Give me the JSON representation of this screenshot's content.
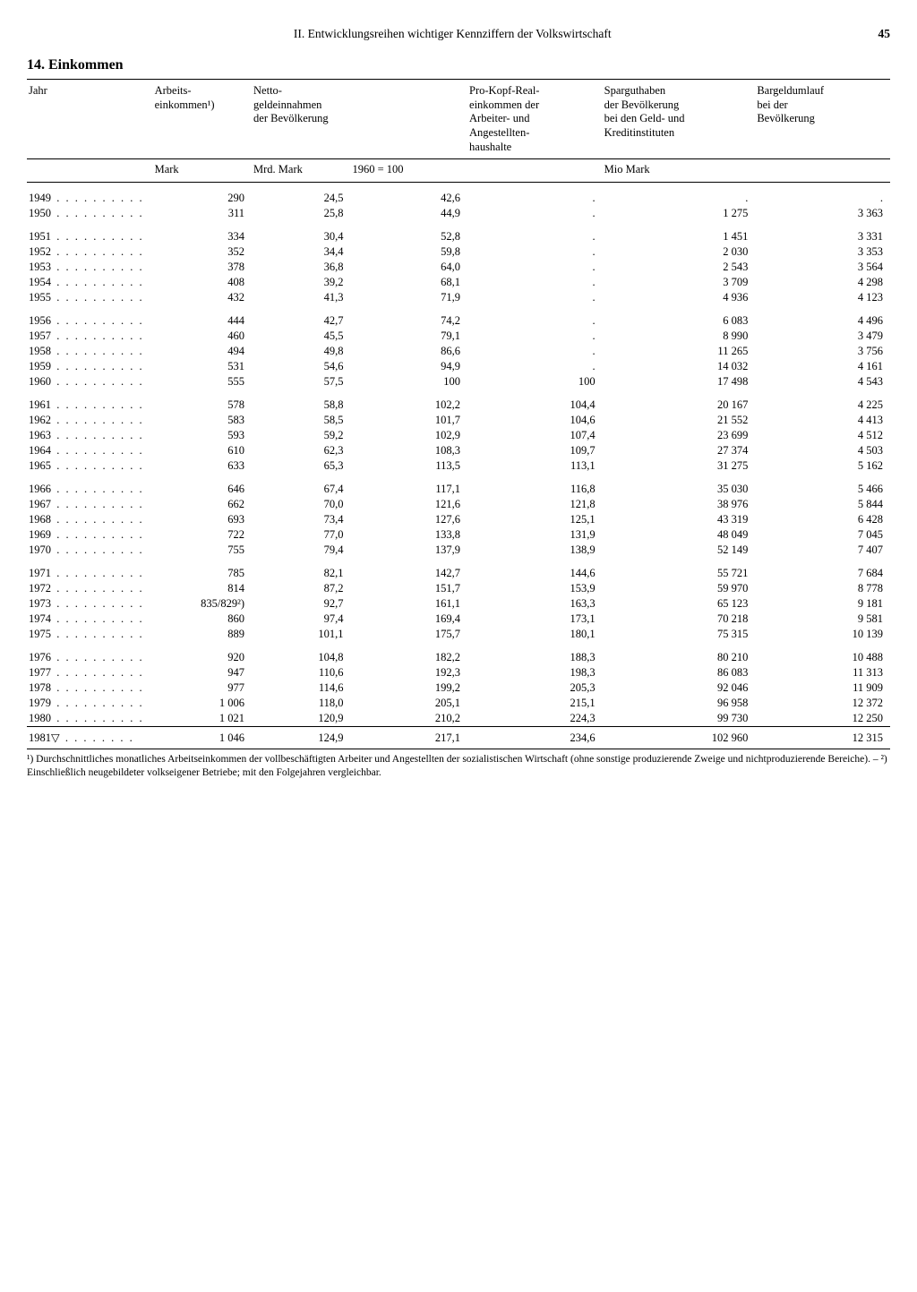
{
  "page": {
    "running_head": "II. Entwicklungsreihen wichtiger Kennziffern der Volkswirtschaft",
    "page_number": "45",
    "section_title": "14. Einkommen"
  },
  "table": {
    "col_widths": [
      "130px",
      "110px",
      "110px",
      "130px",
      "150px",
      "170px",
      "150px"
    ],
    "head": {
      "c1": "Jahr",
      "c2": "Arbeits-\neinkommen¹)",
      "c3": "Netto-\ngeldeinnahmen\nder Bevölkerung",
      "c5": "Pro-Kopf-Real-\neinkommen der\nArbeiter- und\nAngestellten-\nhaushalte",
      "c6": "Sparguthaben\nder Bevölkerung\nbei den Geld- und\nKreditinstituten",
      "c7": "Bargeldumlauf\nbei der\nBevölkerung"
    },
    "sub": {
      "c2": "Mark",
      "c3": "Mrd. Mark",
      "c4": "1960 = 100",
      "c6": "Mio Mark"
    },
    "groups": [
      [
        {
          "year": "1949",
          "c2": "290",
          "c3": "24,5",
          "c4": "42,6",
          "c5": ".",
          "c6": ".",
          "c7": "."
        },
        {
          "year": "1950",
          "c2": "311",
          "c3": "25,8",
          "c4": "44,9",
          "c5": ".",
          "c6": "1 275",
          "c7": "3 363"
        }
      ],
      [
        {
          "year": "1951",
          "c2": "334",
          "c3": "30,4",
          "c4": "52,8",
          "c5": ".",
          "c6": "1 451",
          "c7": "3 331"
        },
        {
          "year": "1952",
          "c2": "352",
          "c3": "34,4",
          "c4": "59,8",
          "c5": ".",
          "c6": "2 030",
          "c7": "3 353"
        },
        {
          "year": "1953",
          "c2": "378",
          "c3": "36,8",
          "c4": "64,0",
          "c5": ".",
          "c6": "2 543",
          "c7": "3 564"
        },
        {
          "year": "1954",
          "c2": "408",
          "c3": "39,2",
          "c4": "68,1",
          "c5": ".",
          "c6": "3 709",
          "c7": "4 298"
        },
        {
          "year": "1955",
          "c2": "432",
          "c3": "41,3",
          "c4": "71,9",
          "c5": ".",
          "c6": "4 936",
          "c7": "4 123"
        }
      ],
      [
        {
          "year": "1956",
          "c2": "444",
          "c3": "42,7",
          "c4": "74,2",
          "c5": ".",
          "c6": "6 083",
          "c7": "4 496"
        },
        {
          "year": "1957",
          "c2": "460",
          "c3": "45,5",
          "c4": "79,1",
          "c5": ".",
          "c6": "8 990",
          "c7": "3 479"
        },
        {
          "year": "1958",
          "c2": "494",
          "c3": "49,8",
          "c4": "86,6",
          "c5": ".",
          "c6": "11 265",
          "c7": "3 756"
        },
        {
          "year": "1959",
          "c2": "531",
          "c3": "54,6",
          "c4": "94,9",
          "c5": ".",
          "c6": "14 032",
          "c7": "4 161"
        },
        {
          "year": "1960",
          "c2": "555",
          "c3": "57,5",
          "c4": "100",
          "c5": "100",
          "c6": "17 498",
          "c7": "4 543"
        }
      ],
      [
        {
          "year": "1961",
          "c2": "578",
          "c3": "58,8",
          "c4": "102,2",
          "c5": "104,4",
          "c6": "20 167",
          "c7": "4 225"
        },
        {
          "year": "1962",
          "c2": "583",
          "c3": "58,5",
          "c4": "101,7",
          "c5": "104,6",
          "c6": "21 552",
          "c7": "4 413"
        },
        {
          "year": "1963",
          "c2": "593",
          "c3": "59,2",
          "c4": "102,9",
          "c5": "107,4",
          "c6": "23 699",
          "c7": "4 512"
        },
        {
          "year": "1964",
          "c2": "610",
          "c3": "62,3",
          "c4": "108,3",
          "c5": "109,7",
          "c6": "27 374",
          "c7": "4 503"
        },
        {
          "year": "1965",
          "c2": "633",
          "c3": "65,3",
          "c4": "113,5",
          "c5": "113,1",
          "c6": "31 275",
          "c7": "5 162"
        }
      ],
      [
        {
          "year": "1966",
          "c2": "646",
          "c3": "67,4",
          "c4": "117,1",
          "c5": "116,8",
          "c6": "35 030",
          "c7": "5 466"
        },
        {
          "year": "1967",
          "c2": "662",
          "c3": "70,0",
          "c4": "121,6",
          "c5": "121,8",
          "c6": "38 976",
          "c7": "5 844"
        },
        {
          "year": "1968",
          "c2": "693",
          "c3": "73,4",
          "c4": "127,6",
          "c5": "125,1",
          "c6": "43 319",
          "c7": "6 428"
        },
        {
          "year": "1969",
          "c2": "722",
          "c3": "77,0",
          "c4": "133,8",
          "c5": "131,9",
          "c6": "48 049",
          "c7": "7 045"
        },
        {
          "year": "1970",
          "c2": "755",
          "c3": "79,4",
          "c4": "137,9",
          "c5": "138,9",
          "c6": "52 149",
          "c7": "7 407"
        }
      ],
      [
        {
          "year": "1971",
          "c2": "785",
          "c3": "82,1",
          "c4": "142,7",
          "c5": "144,6",
          "c6": "55 721",
          "c7": "7 684"
        },
        {
          "year": "1972",
          "c2": "814",
          "c3": "87,2",
          "c4": "151,7",
          "c5": "153,9",
          "c6": "59 970",
          "c7": "8 778"
        },
        {
          "year": "1973",
          "c2": "835/829²)",
          "c3": "92,7",
          "c4": "161,1",
          "c5": "163,3",
          "c6": "65 123",
          "c7": "9 181"
        },
        {
          "year": "1974",
          "c2": "860",
          "c3": "97,4",
          "c4": "169,4",
          "c5": "173,1",
          "c6": "70 218",
          "c7": "9 581"
        },
        {
          "year": "1975",
          "c2": "889",
          "c3": "101,1",
          "c4": "175,7",
          "c5": "180,1",
          "c6": "75 315",
          "c7": "10 139"
        }
      ],
      [
        {
          "year": "1976",
          "c2": "920",
          "c3": "104,8",
          "c4": "182,2",
          "c5": "188,3",
          "c6": "80 210",
          "c7": "10 488"
        },
        {
          "year": "1977",
          "c2": "947",
          "c3": "110,6",
          "c4": "192,3",
          "c5": "198,3",
          "c6": "86 083",
          "c7": "11 313"
        },
        {
          "year": "1978",
          "c2": "977",
          "c3": "114,6",
          "c4": "199,2",
          "c5": "205,3",
          "c6": "92 046",
          "c7": "11 909"
        },
        {
          "year": "1979",
          "c2": "1 006",
          "c3": "118,0",
          "c4": "205,1",
          "c5": "215,1",
          "c6": "96 958",
          "c7": "12 372"
        },
        {
          "year": "1980",
          "c2": "1 021",
          "c3": "120,9",
          "c4": "210,2",
          "c5": "224,3",
          "c6": "99 730",
          "c7": "12 250"
        }
      ]
    ],
    "final": {
      "year": "1981▽",
      "c2": "1 046",
      "c3": "124,9",
      "c4": "217,1",
      "c5": "234,6",
      "c6": "102 960",
      "c7": "12 315"
    },
    "year_dots": ". . . . . . . . . .",
    "year_dots_short": ". . . . . . . ."
  },
  "footnote": "¹) Durchschnittliches monatliches Arbeitseinkommen der vollbeschäftigten Arbeiter und Angestellten der sozialistischen Wirtschaft (ohne sonstige produzierende Zweige und nichtproduzierende Bereiche). – ²) Einschließlich neugebildeter volkseigener Betriebe; mit den Folgejahren vergleichbar."
}
